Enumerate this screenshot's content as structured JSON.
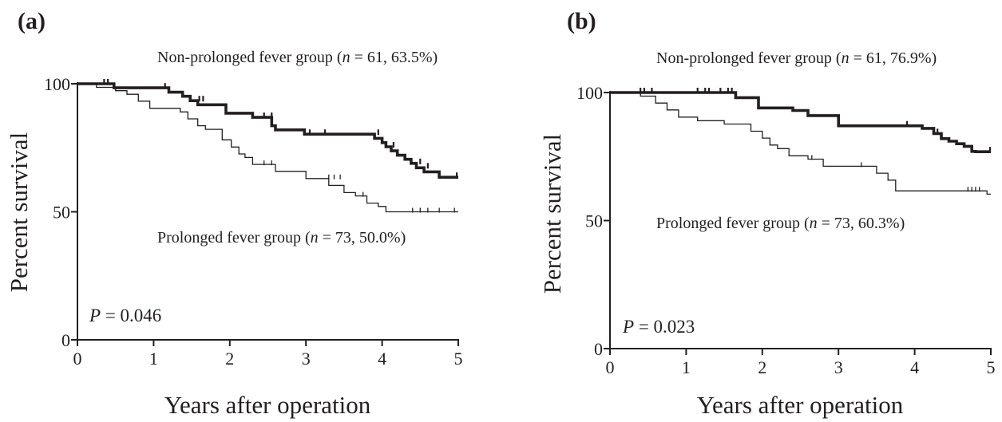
{
  "chart_data": [
    {
      "type": "line",
      "panel_label": "(a)",
      "xlabel": "Years after operation",
      "ylabel": "Percent survival",
      "xlim": [
        0,
        5
      ],
      "ylim": [
        0,
        100
      ],
      "xticks": [
        "0",
        "1",
        "2",
        "3",
        "4",
        "5"
      ],
      "yticks": [
        "0",
        "50",
        "100"
      ],
      "p_value": "0.046",
      "series": [
        {
          "name": "Non-prolonged fever group (n = 61, 63.5%)",
          "label_prefix": "Non-prolonged fever group (",
          "label_n": "n",
          "label_suffix": " = 61, 63.5%)",
          "weight": "bold",
          "x": [
            0,
            0.48,
            1.2,
            1.38,
            1.48,
            1.58,
            1.95,
            2.3,
            2.55,
            2.6,
            2.98,
            3.9,
            4.0,
            4.05,
            4.12,
            4.2,
            4.3,
            4.38,
            4.45,
            4.55,
            4.6,
            4.75,
            5.0
          ],
          "y": [
            100,
            98.4,
            96.7,
            95.1,
            93.4,
            91.8,
            88.5,
            86.9,
            83.6,
            82.0,
            80.3,
            78.7,
            77.0,
            75.4,
            73.8,
            72.1,
            70.5,
            68.9,
            67.2,
            65.6,
            65.6,
            63.5,
            63.5
          ],
          "censor_x": [
            0.35,
            0.4,
            1.15,
            1.6,
            1.65,
            2.45,
            2.55,
            3.05,
            3.25,
            3.95,
            4.15,
            4.5,
            4.6,
            4.98
          ],
          "censor_y": [
            100,
            100,
            98.4,
            93.4,
            93.4,
            86.9,
            86.9,
            80.3,
            80.3,
            80.3,
            75.4,
            68.9,
            67.2,
            63.5
          ]
        },
        {
          "name": "Prolonged fever group (n = 73, 50.0%)",
          "label_prefix": "Prolonged fever group (",
          "label_n": "n",
          "label_suffix": " = 73, 50.0%)",
          "weight": "thin",
          "x": [
            0,
            0.25,
            0.5,
            0.65,
            0.8,
            0.95,
            1.35,
            1.45,
            1.58,
            1.68,
            1.9,
            2.02,
            2.12,
            2.2,
            2.3,
            2.4,
            2.6,
            3.0,
            3.3,
            3.5,
            3.65,
            3.8,
            3.95,
            4.05,
            5.0
          ],
          "y": [
            100,
            98.6,
            97.3,
            95.9,
            93.2,
            90.4,
            89.0,
            86.3,
            83.6,
            82.2,
            78.1,
            75.3,
            72.6,
            71.2,
            68.5,
            68.5,
            65.8,
            63.0,
            60.3,
            57.5,
            56.2,
            53.4,
            52.1,
            50.0,
            50.0
          ],
          "censor_x": [
            2.45,
            2.55,
            3.3,
            3.37,
            3.45,
            3.75,
            4.4,
            4.5,
            4.6,
            4.75,
            4.95
          ],
          "censor_y": [
            68.5,
            68.5,
            63.0,
            63.0,
            63.0,
            56.2,
            50.0,
            50.0,
            50.0,
            50.0,
            50.0
          ]
        }
      ]
    },
    {
      "type": "line",
      "panel_label": "(b)",
      "xlabel": "Years after operation",
      "ylabel": "Percent survival",
      "xlim": [
        0,
        5
      ],
      "ylim": [
        0,
        100
      ],
      "xticks": [
        "0",
        "1",
        "2",
        "3",
        "4",
        "5"
      ],
      "yticks": [
        "0",
        "50",
        "100"
      ],
      "p_value": "0.023",
      "series": [
        {
          "name": "Non-prolonged fever group (n = 61, 76.9%)",
          "label_prefix": "Non-prolonged fever group (",
          "label_n": "n",
          "label_suffix": " = 61, 76.9%)",
          "weight": "bold",
          "x": [
            0,
            1.65,
            1.95,
            2.4,
            2.6,
            3.0,
            4.1,
            4.25,
            4.35,
            4.45,
            4.55,
            4.65,
            4.75,
            4.8,
            5.0
          ],
          "y": [
            100,
            98.0,
            94.0,
            93.0,
            91.0,
            87.0,
            86.0,
            84.0,
            82.0,
            81.0,
            80.0,
            79.0,
            77.0,
            76.9,
            76.9
          ],
          "censor_x": [
            0.4,
            0.45,
            0.55,
            1.15,
            1.25,
            1.3,
            1.45,
            1.55,
            1.6,
            3.9,
            4.3,
            4.99
          ],
          "censor_y": [
            100,
            100,
            100,
            100,
            100,
            100,
            100,
            100,
            100,
            87.0,
            84.0,
            76.9
          ]
        },
        {
          "name": "Prolonged fever group (n = 73, 60.3%)",
          "label_prefix": "Prolonged fever group (",
          "label_n": "n",
          "label_suffix": " = 73, 60.3%)",
          "weight": "thin",
          "x": [
            0,
            0.4,
            0.6,
            0.75,
            0.9,
            1.15,
            1.5,
            1.85,
            2.0,
            2.1,
            2.2,
            2.35,
            2.6,
            2.8,
            3.0,
            3.5,
            3.65,
            3.75,
            4.95,
            5.0
          ],
          "y": [
            100,
            98.6,
            95.9,
            93.2,
            90.4,
            89.0,
            87.7,
            84.9,
            82.2,
            79.5,
            78.1,
            75.3,
            74.0,
            71.2,
            71.2,
            68.5,
            65.8,
            61.6,
            60.3,
            60.3
          ],
          "censor_x": [
            2.65,
            3.3,
            4.7,
            4.75,
            4.8,
            4.85
          ],
          "censor_y": [
            74.0,
            71.2,
            61.6,
            61.6,
            61.6,
            61.6
          ]
        }
      ]
    }
  ]
}
